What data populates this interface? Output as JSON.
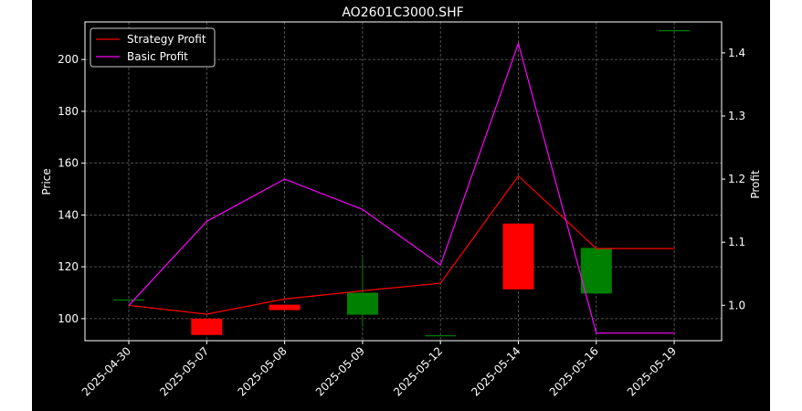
{
  "chart_data": {
    "type": "candlestick+line",
    "title": "AO2601C3000.SHF",
    "ylabel": "Price",
    "y2label": "Profit",
    "categories": [
      "2025-04-30",
      "2025-05-07",
      "2025-05-08",
      "2025-05-09",
      "2025-05-12",
      "2025-05-14",
      "2025-05-16",
      "2025-05-19"
    ],
    "ylim": [
      91.5,
      214.5
    ],
    "y2lim": [
      0.944,
      1.449
    ],
    "yticks": [
      "100",
      "120",
      "140",
      "160",
      "180",
      "200"
    ],
    "y2ticks": [
      "1.0",
      "1.1",
      "1.2",
      "1.3",
      "1.4"
    ],
    "grid": true,
    "legend": "upper-left",
    "candles": [
      {
        "date": "2025-04-30",
        "open": 107.4,
        "high": 107.4,
        "low": 107.4,
        "close": 107.4
      },
      {
        "date": "2025-05-07",
        "open": 100.0,
        "high": 100.0,
        "low": 93.7,
        "close": 93.7
      },
      {
        "date": "2025-05-08",
        "open": 105.4,
        "high": 105.4,
        "low": 103.3,
        "close": 103.3
      },
      {
        "date": "2025-05-09",
        "open": 101.5,
        "high": 123.5,
        "low": 96.8,
        "close": 110.0
      },
      {
        "date": "2025-05-12",
        "open": 93.6,
        "high": 93.6,
        "low": 93.6,
        "close": 93.6
      },
      {
        "date": "2025-05-14",
        "open": 136.7,
        "high": 136.7,
        "low": 111.3,
        "close": 111.3
      },
      {
        "date": "2025-05-16",
        "open": 109.7,
        "high": 127.3,
        "low": 109.7,
        "close": 127.3
      },
      {
        "date": "2025-05-19",
        "open": 211.3,
        "high": 211.3,
        "low": 211.3,
        "close": 211.3
      }
    ],
    "series": [
      {
        "name": "Strategy Profit",
        "color": "#ff0000",
        "axis": "right",
        "values": [
          1.0,
          0.986,
          1.01,
          1.023,
          1.035,
          1.205,
          1.09,
          1.09
        ]
      },
      {
        "name": "Basic Profit",
        "color": "#ff00ff",
        "axis": "right",
        "values": [
          1.0,
          1.133,
          1.2,
          1.152,
          1.064,
          1.415,
          0.956,
          0.956
        ]
      }
    ],
    "up_color": "#008000",
    "down_color": "#ff0000"
  }
}
